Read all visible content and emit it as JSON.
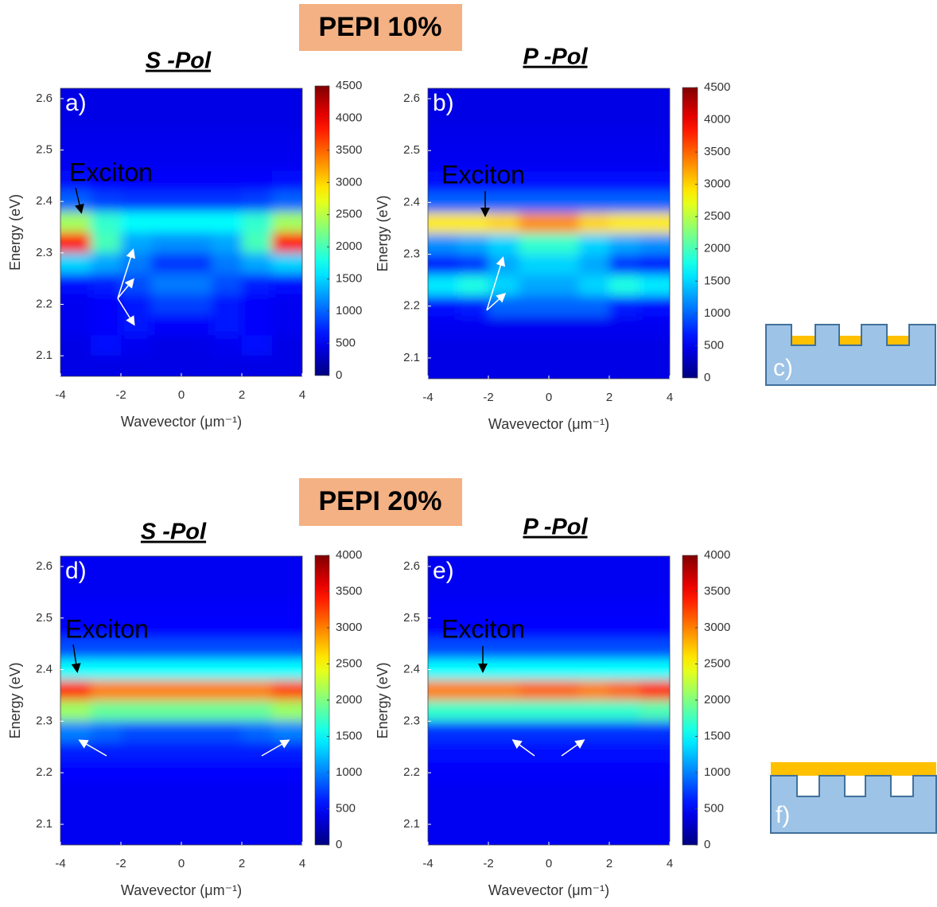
{
  "headers": [
    "PEPI 10%",
    "PEPI 20%"
  ],
  "diagrams": [
    {
      "label": "c)"
    },
    {
      "label": "f)"
    }
  ],
  "chart_data": [
    {
      "type": "heatmap",
      "title": "S -Pol",
      "panel_label": "a)",
      "annotation": "Exciton",
      "xlabel": "Wavevector (μm⁻¹)",
      "ylabel": "Energy (eV)",
      "colormap": "jet",
      "x": [
        -3.5,
        -2.5,
        -1.5,
        -0.5,
        0.5,
        1.5,
        2.5,
        3.5
      ],
      "y": [
        2.6,
        2.56,
        2.52,
        2.48,
        2.44,
        2.4,
        2.36,
        2.32,
        2.28,
        2.24,
        2.2,
        2.16,
        2.12,
        2.08
      ],
      "z": [
        [
          450,
          450,
          450,
          450,
          450,
          450,
          450,
          450
        ],
        [
          450,
          450,
          450,
          450,
          450,
          450,
          450,
          450
        ],
        [
          480,
          480,
          480,
          480,
          480,
          480,
          480,
          480
        ],
        [
          500,
          500,
          500,
          500,
          500,
          500,
          500,
          500
        ],
        [
          600,
          550,
          550,
          550,
          550,
          550,
          550,
          600
        ],
        [
          1000,
          850,
          800,
          800,
          800,
          800,
          850,
          1000
        ],
        [
          2400,
          1900,
          1700,
          1700,
          1700,
          1700,
          1900,
          2400
        ],
        [
          3900,
          2000,
          1300,
          1200,
          1200,
          1300,
          2000,
          3900
        ],
        [
          1500,
          1300,
          1100,
          800,
          800,
          1100,
          1300,
          1500
        ],
        [
          600,
          700,
          900,
          1100,
          1100,
          900,
          700,
          600
        ],
        [
          500,
          550,
          650,
          850,
          850,
          650,
          550,
          500
        ],
        [
          500,
          550,
          650,
          550,
          550,
          650,
          550,
          500
        ],
        [
          450,
          600,
          500,
          450,
          450,
          500,
          600,
          450
        ],
        [
          450,
          450,
          450,
          450,
          450,
          450,
          450,
          450
        ]
      ],
      "xlim": [
        -4,
        4
      ],
      "ylim": [
        2.06,
        2.62
      ],
      "xticks": [
        -4,
        -2,
        0,
        2,
        4
      ],
      "yticks": [
        2.1,
        2.2,
        2.3,
        2.4,
        2.5,
        2.6
      ],
      "zlim": [
        0,
        4500
      ],
      "zticks": [
        0,
        500,
        1000,
        1500,
        2000,
        2500,
        3000,
        3500,
        4000,
        4500
      ]
    },
    {
      "type": "heatmap",
      "title": "P -Pol",
      "panel_label": "b)",
      "annotation": "Exciton",
      "xlabel": "Wavevector (μm⁻¹)",
      "ylabel": "Energy (eV)",
      "colormap": "jet",
      "x": [
        -3.5,
        -2.5,
        -1.5,
        -0.5,
        0.5,
        1.5,
        2.5,
        3.5
      ],
      "y": [
        2.6,
        2.56,
        2.52,
        2.48,
        2.44,
        2.4,
        2.36,
        2.32,
        2.28,
        2.24,
        2.2,
        2.16,
        2.12,
        2.08
      ],
      "z": [
        [
          450,
          450,
          450,
          450,
          450,
          450,
          450,
          450
        ],
        [
          450,
          450,
          450,
          450,
          450,
          450,
          450,
          450
        ],
        [
          480,
          480,
          480,
          480,
          480,
          480,
          480,
          480
        ],
        [
          500,
          500,
          500,
          500,
          500,
          500,
          500,
          500
        ],
        [
          600,
          600,
          600,
          600,
          600,
          600,
          600,
          600
        ],
        [
          1000,
          1000,
          1000,
          1000,
          1000,
          1000,
          1000,
          1000
        ],
        [
          2900,
          2900,
          3000,
          3300,
          3300,
          3000,
          2900,
          2900
        ],
        [
          1200,
          1300,
          1500,
          1900,
          1900,
          1500,
          1300,
          1200
        ],
        [
          700,
          800,
          1300,
          1500,
          1500,
          1300,
          800,
          700
        ],
        [
          1600,
          1800,
          1500,
          1300,
          1300,
          1500,
          1800,
          1600
        ],
        [
          600,
          700,
          1000,
          1000,
          1000,
          1000,
          700,
          600
        ],
        [
          500,
          500,
          500,
          500,
          500,
          500,
          500,
          500
        ],
        [
          450,
          450,
          450,
          450,
          450,
          450,
          450,
          450
        ],
        [
          450,
          450,
          450,
          450,
          450,
          450,
          450,
          450
        ]
      ],
      "xlim": [
        -4,
        4
      ],
      "ylim": [
        2.06,
        2.62
      ],
      "xticks": [
        -4,
        -2,
        0,
        2,
        4
      ],
      "yticks": [
        2.1,
        2.2,
        2.3,
        2.4,
        2.5,
        2.6
      ],
      "zlim": [
        0,
        4500
      ],
      "zticks": [
        0,
        500,
        1000,
        1500,
        2000,
        2500,
        3000,
        3500,
        4000,
        4500
      ]
    },
    {
      "type": "heatmap",
      "title": "S -Pol",
      "panel_label": "d)",
      "annotation": "Exciton",
      "xlabel": "Wavevector (μm⁻¹)",
      "ylabel": "Energy (eV)",
      "colormap": "jet",
      "x": [
        -3.5,
        -2.5,
        -1.5,
        -0.5,
        0.5,
        1.5,
        2.5,
        3.5
      ],
      "y": [
        2.6,
        2.56,
        2.52,
        2.48,
        2.44,
        2.4,
        2.36,
        2.32,
        2.28,
        2.24,
        2.2,
        2.16,
        2.12,
        2.08
      ],
      "z": [
        [
          450,
          450,
          450,
          450,
          450,
          450,
          450,
          450
        ],
        [
          450,
          450,
          450,
          450,
          450,
          450,
          450,
          450
        ],
        [
          480,
          480,
          480,
          480,
          480,
          480,
          480,
          480
        ],
        [
          520,
          520,
          520,
          520,
          520,
          520,
          520,
          520
        ],
        [
          800,
          800,
          800,
          800,
          800,
          800,
          800,
          800
        ],
        [
          1500,
          1500,
          1500,
          1500,
          1500,
          1500,
          1500,
          1500
        ],
        [
          3300,
          3000,
          3000,
          3000,
          3000,
          3000,
          3000,
          3200
        ],
        [
          2100,
          1900,
          1900,
          1900,
          1900,
          1900,
          1900,
          2100
        ],
        [
          1000,
          900,
          800,
          800,
          800,
          800,
          900,
          1000
        ],
        [
          600,
          600,
          600,
          600,
          600,
          600,
          600,
          600
        ],
        [
          500,
          500,
          500,
          500,
          500,
          500,
          500,
          500
        ],
        [
          450,
          450,
          450,
          450,
          450,
          450,
          450,
          450
        ],
        [
          450,
          450,
          450,
          450,
          450,
          450,
          450,
          450
        ],
        [
          450,
          450,
          450,
          450,
          450,
          450,
          450,
          450
        ]
      ],
      "xlim": [
        -4,
        4
      ],
      "ylim": [
        2.06,
        2.62
      ],
      "xticks": [
        -4,
        -2,
        0,
        2,
        4
      ],
      "yticks": [
        2.1,
        2.2,
        2.3,
        2.4,
        2.5,
        2.6
      ],
      "zlim": [
        0,
        4000
      ],
      "zticks": [
        0,
        500,
        1000,
        1500,
        2000,
        2500,
        3000,
        3500,
        4000
      ]
    },
    {
      "type": "heatmap",
      "title": "P -Pol",
      "panel_label": "e)",
      "annotation": "Exciton",
      "xlabel": "Wavevector (μm⁻¹)",
      "ylabel": "Energy (eV)",
      "colormap": "jet",
      "x": [
        -3.5,
        -2.5,
        -1.5,
        -0.5,
        0.5,
        1.5,
        2.5,
        3.5
      ],
      "y": [
        2.6,
        2.56,
        2.52,
        2.48,
        2.44,
        2.4,
        2.36,
        2.32,
        2.28,
        2.24,
        2.2,
        2.16,
        2.12,
        2.08
      ],
      "z": [
        [
          450,
          450,
          450,
          450,
          450,
          450,
          450,
          450
        ],
        [
          450,
          450,
          450,
          450,
          450,
          450,
          450,
          450
        ],
        [
          480,
          480,
          480,
          480,
          480,
          480,
          480,
          480
        ],
        [
          520,
          520,
          520,
          520,
          520,
          520,
          520,
          520
        ],
        [
          800,
          800,
          800,
          800,
          800,
          800,
          800,
          800
        ],
        [
          1500,
          1500,
          1500,
          1500,
          1500,
          1500,
          1500,
          1500
        ],
        [
          3000,
          3000,
          3000,
          3100,
          3100,
          3000,
          3100,
          3300
        ],
        [
          1700,
          1700,
          1700,
          1700,
          1700,
          1700,
          1700,
          1800
        ],
        [
          700,
          700,
          700,
          700,
          700,
          700,
          700,
          700
        ],
        [
          550,
          550,
          550,
          550,
          550,
          550,
          550,
          550
        ],
        [
          480,
          480,
          480,
          480,
          480,
          480,
          480,
          480
        ],
        [
          450,
          450,
          450,
          450,
          450,
          450,
          450,
          450
        ],
        [
          450,
          450,
          450,
          450,
          450,
          450,
          450,
          450
        ],
        [
          450,
          450,
          450,
          450,
          450,
          450,
          450,
          450
        ]
      ],
      "xlim": [
        -4,
        4
      ],
      "ylim": [
        2.06,
        2.62
      ],
      "xticks": [
        -4,
        -2,
        0,
        2,
        4
      ],
      "yticks": [
        2.1,
        2.2,
        2.3,
        2.4,
        2.5,
        2.6
      ],
      "zlim": [
        0,
        4000
      ],
      "zticks": [
        0,
        500,
        1000,
        1500,
        2000,
        2500,
        3000,
        3500,
        4000
      ]
    }
  ]
}
